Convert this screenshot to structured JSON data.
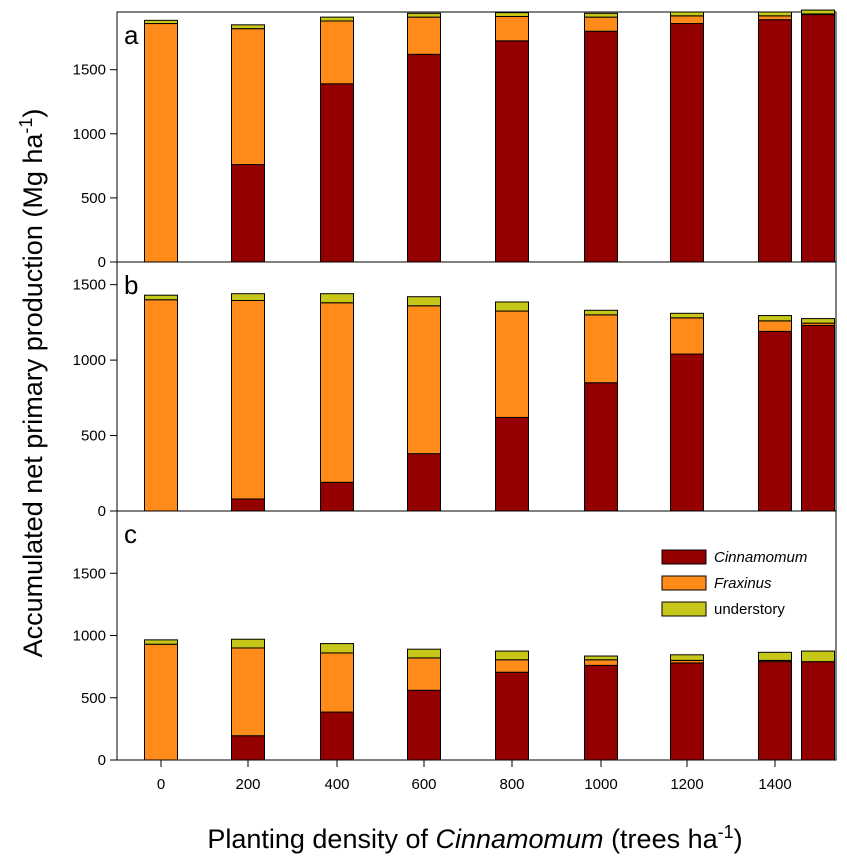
{
  "chart_data": {
    "type": "bar",
    "stacked": true,
    "x_categories": [
      "0",
      "200",
      "400",
      "600",
      "800",
      "1000",
      "1200",
      "1400",
      "1500"
    ],
    "x_tick_labels": [
      "0",
      "200",
      "400",
      "600",
      "800",
      "1000",
      "1200",
      "1400"
    ],
    "y_axis_title": {
      "pre": "Accumulated net primary production (Mg ha",
      "sup": "-1",
      "post": ")"
    },
    "x_axis_title": {
      "pre": "Planting density of ",
      "italic": "Cinnamomum",
      "mid": " (trees ha",
      "sup": "-1",
      "post": ")"
    },
    "colors": {
      "Cinnamomum": "#940000",
      "Fraxinus": "#ff8c1a",
      "understory": "#c7c71a"
    },
    "legend": {
      "placement": "top-right of panel c",
      "entries": [
        {
          "label": "Cinnamomum",
          "italic": true,
          "color_key": "Cinnamomum"
        },
        {
          "label": "Fraxinus",
          "italic": true,
          "color_key": "Fraxinus"
        },
        {
          "label": "understory",
          "italic": false,
          "color_key": "understory"
        }
      ]
    },
    "panels": [
      {
        "label": "a",
        "ylim": [
          0,
          1950
        ],
        "yticks": [
          0,
          500,
          1000,
          1500
        ],
        "series": [
          {
            "name": "Cinnamomum",
            "values": [
              0,
              760,
              1390,
              1620,
              1725,
              1800,
              1860,
              1890,
              1930
            ]
          },
          {
            "name": "Fraxinus",
            "values": [
              1860,
              1060,
              490,
              290,
              190,
              110,
              60,
              30,
              5
            ]
          },
          {
            "name": "understory",
            "values": [
              25,
              30,
              30,
              30,
              30,
              30,
              30,
              30,
              30
            ]
          }
        ]
      },
      {
        "label": "b",
        "ylim": [
          0,
          1650
        ],
        "yticks": [
          0,
          500,
          1000,
          1500
        ],
        "series": [
          {
            "name": "Cinnamomum",
            "values": [
              0,
              80,
              190,
              380,
              620,
              850,
              1040,
              1190,
              1230
            ]
          },
          {
            "name": "Fraxinus",
            "values": [
              1400,
              1315,
              1190,
              980,
              705,
              450,
              240,
              70,
              15
            ]
          },
          {
            "name": "understory",
            "values": [
              30,
              45,
              60,
              60,
              60,
              30,
              30,
              35,
              30
            ]
          }
        ]
      },
      {
        "label": "c",
        "ylim": [
          0,
          2000
        ],
        "yticks": [
          0,
          500,
          1000,
          1500
        ],
        "series": [
          {
            "name": "Cinnamomum",
            "values": [
              0,
              195,
              385,
              560,
              705,
              760,
              780,
              790,
              790
            ]
          },
          {
            "name": "Fraxinus",
            "values": [
              930,
              705,
              475,
              260,
              100,
              45,
              20,
              10,
              0
            ]
          },
          {
            "name": "understory",
            "values": [
              35,
              70,
              75,
              70,
              70,
              30,
              45,
              65,
              85
            ]
          }
        ]
      }
    ]
  }
}
